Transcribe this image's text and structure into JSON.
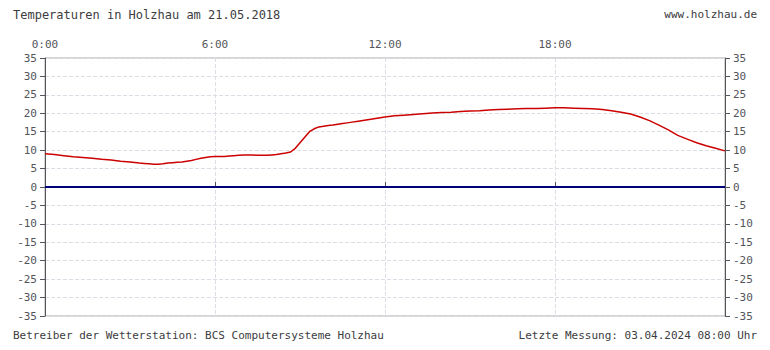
{
  "chart_data": {
    "type": "line",
    "title": "Temperaturen in Holzhau am 21.05.2018",
    "annotations": [
      "www.holzhau.de",
      "Betreiber der Wetterstation: BCS Computersysteme Holzhau",
      "Letzte Messung: 03.04.2024 08:00 Uhr"
    ],
    "x": [
      0,
      20,
      40,
      60,
      80,
      100,
      120,
      140,
      160,
      180,
      200,
      210,
      220,
      230,
      240,
      250,
      260,
      270,
      280,
      290,
      300,
      310,
      320,
      330,
      340,
      350,
      360,
      370,
      380,
      390,
      400,
      410,
      420,
      430,
      440,
      450,
      460,
      470,
      480,
      490,
      500,
      510,
      520,
      530,
      540,
      550,
      560,
      570,
      580,
      590,
      600,
      610,
      620,
      630,
      640,
      650,
      660,
      670,
      680,
      690,
      700,
      710,
      720,
      740,
      760,
      780,
      800,
      820,
      840,
      860,
      880,
      900,
      920,
      940,
      960,
      980,
      1000,
      1020,
      1040,
      1060,
      1080,
      1100,
      1120,
      1140,
      1160,
      1180,
      1200,
      1220,
      1240,
      1260,
      1280,
      1300,
      1320,
      1340,
      1360,
      1380,
      1400,
      1420,
      1440
    ],
    "values": [
      9.0,
      8.8,
      8.5,
      8.2,
      8.0,
      7.8,
      7.5,
      7.3,
      7.0,
      6.8,
      6.5,
      6.4,
      6.3,
      6.2,
      6.2,
      6.3,
      6.5,
      6.6,
      6.7,
      6.8,
      7.0,
      7.2,
      7.5,
      7.8,
      8.0,
      8.2,
      8.3,
      8.3,
      8.3,
      8.4,
      8.5,
      8.6,
      8.7,
      8.7,
      8.7,
      8.6,
      8.6,
      8.6,
      8.7,
      8.8,
      9.0,
      9.2,
      9.5,
      10.5,
      12.0,
      13.5,
      15.0,
      15.8,
      16.3,
      16.5,
      16.7,
      16.8,
      17.0,
      17.2,
      17.4,
      17.6,
      17.8,
      18.0,
      18.2,
      18.4,
      18.6,
      18.8,
      19.0,
      19.3,
      19.5,
      19.7,
      19.9,
      20.1,
      20.2,
      20.3,
      20.5,
      20.6,
      20.7,
      20.9,
      21.0,
      21.1,
      21.2,
      21.3,
      21.3,
      21.4,
      21.5,
      21.5,
      21.4,
      21.3,
      21.2,
      21.0,
      20.7,
      20.3,
      19.8,
      19.0,
      18.0,
      16.8,
      15.5,
      14.0,
      13.0,
      12.0,
      11.2,
      10.5,
      9.8
    ],
    "color": "#cc0000",
    "hline": {
      "y": 0,
      "color": "#00007a"
    },
    "xlim": [
      0,
      1440
    ],
    "xticks": [
      {
        "value": 0,
        "label": "0:00"
      },
      {
        "value": 360,
        "label": "6:00"
      },
      {
        "value": 720,
        "label": "12:00"
      },
      {
        "value": 1080,
        "label": "18:00"
      }
    ],
    "ylim": [
      -35,
      35
    ],
    "yticks": [
      -35,
      -30,
      -25,
      -20,
      -15,
      -10,
      -5,
      0,
      5,
      10,
      15,
      20,
      25,
      30,
      35
    ],
    "y2lim": [
      -35,
      35
    ],
    "y2ticks": [
      -35,
      -30,
      -25,
      -20,
      -15,
      -10,
      -5,
      0,
      5,
      10,
      15,
      20,
      25,
      30,
      35
    ],
    "grid": true
  }
}
